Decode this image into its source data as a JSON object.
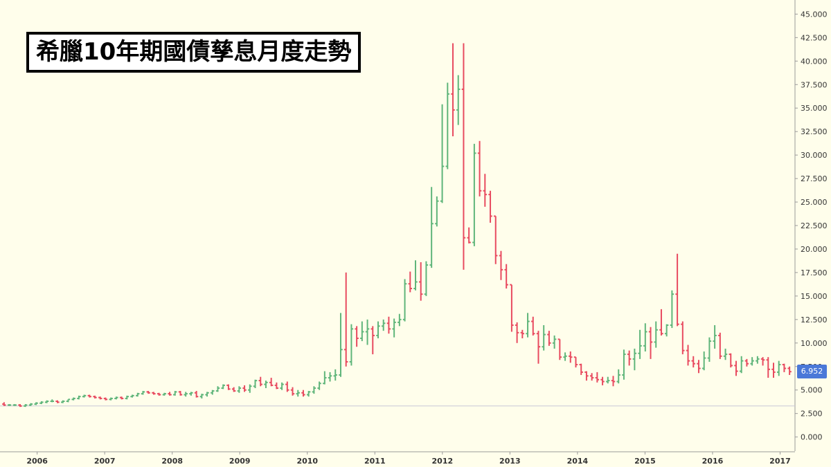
{
  "title": "希臘10年期國債孳息月度走勢",
  "last_price_label": "6.952",
  "colors": {
    "up": "#5fb57a",
    "down": "#e84a5f",
    "background": "#fffeeb",
    "axis": "#999999",
    "price_tag": "#4a78d8",
    "baseline": "#c8c8d8"
  },
  "chart_data": {
    "type": "ohlc",
    "title": "希臘10年期國債孳息月度走勢",
    "xlabel": "",
    "ylabel": "",
    "ylim": [
      -1.5,
      46.5
    ],
    "y_ticks": [
      "0.000",
      "2.500",
      "5.000",
      "7.500",
      "10.000",
      "12.500",
      "15.000",
      "17.500",
      "20.000",
      "22.500",
      "25.000",
      "27.500",
      "30.000",
      "32.500",
      "35.000",
      "37.500",
      "40.000",
      "42.500",
      "45.000"
    ],
    "x_tick_labels": [
      "2006",
      "2007",
      "2008",
      "2009",
      "2010",
      "2011",
      "2012",
      "2013",
      "2014",
      "2015",
      "2016",
      "2017"
    ],
    "x_tick_years": [
      2006,
      2007,
      2008,
      2009,
      2010,
      2011,
      2012,
      2013,
      2014,
      2015,
      2016,
      2017
    ],
    "x_start_year": 2005.45,
    "x_end_year": 2017.2,
    "baseline_value": 3.3,
    "last_value": 6.952,
    "bars": [
      [
        3.5,
        3.7,
        3.3,
        3.4
      ],
      [
        3.4,
        3.5,
        3.3,
        3.4
      ],
      [
        3.4,
        3.5,
        3.3,
        3.4
      ],
      [
        3.4,
        3.5,
        3.2,
        3.3
      ],
      [
        3.3,
        3.5,
        3.2,
        3.4
      ],
      [
        3.4,
        3.6,
        3.3,
        3.5
      ],
      [
        3.5,
        3.7,
        3.4,
        3.6
      ],
      [
        3.6,
        3.8,
        3.5,
        3.7
      ],
      [
        3.7,
        3.9,
        3.6,
        3.8
      ],
      [
        3.8,
        4.0,
        3.7,
        3.8
      ],
      [
        3.8,
        3.9,
        3.6,
        3.7
      ],
      [
        3.7,
        3.9,
        3.6,
        3.8
      ],
      [
        3.8,
        4.0,
        3.7,
        4.0
      ],
      [
        4.0,
        4.2,
        3.9,
        4.1
      ],
      [
        4.1,
        4.4,
        4.0,
        4.3
      ],
      [
        4.3,
        4.5,
        4.2,
        4.4
      ],
      [
        4.4,
        4.5,
        4.2,
        4.3
      ],
      [
        4.3,
        4.4,
        4.1,
        4.2
      ],
      [
        4.2,
        4.3,
        4.0,
        4.1
      ],
      [
        4.1,
        4.2,
        3.9,
        4.0
      ],
      [
        4.0,
        4.2,
        3.9,
        4.1
      ],
      [
        4.1,
        4.3,
        4.0,
        4.2
      ],
      [
        4.2,
        4.3,
        4.0,
        4.1
      ],
      [
        4.1,
        4.4,
        4.0,
        4.3
      ],
      [
        4.3,
        4.5,
        4.2,
        4.4
      ],
      [
        4.4,
        4.7,
        4.3,
        4.6
      ],
      [
        4.6,
        4.9,
        4.5,
        4.8
      ],
      [
        4.8,
        4.9,
        4.6,
        4.7
      ],
      [
        4.7,
        4.8,
        4.5,
        4.6
      ],
      [
        4.6,
        4.7,
        4.4,
        4.5
      ],
      [
        4.5,
        4.7,
        4.4,
        4.6
      ],
      [
        4.6,
        4.8,
        4.4,
        4.5
      ],
      [
        4.5,
        4.9,
        4.4,
        4.8
      ],
      [
        4.8,
        4.9,
        4.4,
        4.5
      ],
      [
        4.5,
        4.8,
        4.3,
        4.6
      ],
      [
        4.6,
        4.8,
        4.4,
        4.7
      ],
      [
        4.7,
        4.9,
        4.2,
        4.3
      ],
      [
        4.3,
        4.6,
        4.1,
        4.5
      ],
      [
        4.5,
        4.8,
        4.3,
        4.7
      ],
      [
        4.7,
        5.0,
        4.5,
        4.9
      ],
      [
        4.9,
        5.4,
        4.8,
        5.2
      ],
      [
        5.2,
        5.6,
        5.1,
        5.5
      ],
      [
        5.5,
        5.6,
        5.0,
        5.1
      ],
      [
        5.1,
        5.3,
        4.8,
        4.9
      ],
      [
        4.9,
        5.4,
        4.7,
        5.2
      ],
      [
        5.2,
        5.5,
        4.8,
        5.0
      ],
      [
        5.0,
        5.6,
        4.7,
        5.4
      ],
      [
        5.4,
        6.1,
        5.2,
        6.0
      ],
      [
        6.0,
        6.4,
        5.4,
        5.6
      ],
      [
        5.6,
        6.0,
        5.2,
        5.8
      ],
      [
        5.8,
        6.3,
        5.4,
        5.5
      ],
      [
        5.5,
        5.8,
        5.1,
        5.2
      ],
      [
        5.2,
        5.8,
        5.0,
        5.6
      ],
      [
        5.6,
        5.9,
        4.8,
        5.0
      ],
      [
        5.0,
        5.3,
        4.4,
        4.6
      ],
      [
        4.6,
        5.0,
        4.3,
        4.7
      ],
      [
        4.7,
        5.0,
        4.3,
        4.5
      ],
      [
        4.5,
        4.9,
        4.3,
        4.8
      ],
      [
        4.8,
        5.4,
        4.6,
        5.2
      ],
      [
        5.2,
        5.9,
        5.0,
        5.7
      ],
      [
        5.7,
        7.0,
        5.6,
        6.3
      ],
      [
        6.3,
        6.9,
        5.9,
        6.5
      ],
      [
        6.5,
        7.2,
        6.0,
        6.6
      ],
      [
        6.6,
        13.2,
        6.4,
        9.3
      ],
      [
        9.3,
        17.5,
        7.5,
        8.0
      ],
      [
        8.0,
        12.0,
        7.6,
        11.5
      ],
      [
        11.5,
        11.8,
        9.6,
        10.5
      ],
      [
        10.5,
        12.3,
        10.2,
        11.2
      ],
      [
        11.2,
        12.5,
        9.8,
        11.5
      ],
      [
        11.5,
        11.8,
        8.8,
        10.8
      ],
      [
        10.8,
        12.3,
        10.5,
        11.8
      ],
      [
        11.8,
        12.5,
        11.3,
        12.1
      ],
      [
        12.1,
        12.8,
        11.0,
        11.5
      ],
      [
        11.5,
        12.6,
        10.6,
        12.2
      ],
      [
        12.2,
        13.1,
        11.8,
        12.5
      ],
      [
        12.5,
        16.8,
        12.3,
        16.3
      ],
      [
        16.3,
        17.6,
        15.4,
        15.8
      ],
      [
        15.8,
        18.8,
        15.6,
        16.5
      ],
      [
        16.5,
        18.6,
        14.5,
        15.2
      ],
      [
        15.2,
        18.7,
        15.0,
        18.3
      ],
      [
        18.3,
        26.6,
        18.0,
        22.7
      ],
      [
        22.7,
        25.6,
        22.4,
        25.1
      ],
      [
        25.1,
        35.4,
        24.9,
        28.8
      ],
      [
        28.8,
        37.7,
        28.5,
        36.5
      ],
      [
        36.5,
        41.9,
        32.0,
        34.8
      ],
      [
        34.8,
        38.5,
        33.2,
        37.0
      ],
      [
        37.0,
        41.9,
        17.8,
        21.2
      ],
      [
        21.2,
        22.3,
        20.6,
        20.7
      ],
      [
        20.7,
        31.2,
        20.3,
        30.2
      ],
      [
        30.2,
        31.5,
        25.6,
        26.2
      ],
      [
        26.2,
        28.0,
        24.5,
        25.8
      ],
      [
        25.8,
        26.2,
        22.8,
        23.5
      ],
      [
        23.5,
        23.5,
        18.4,
        19.3
      ],
      [
        19.3,
        19.8,
        16.7,
        17.8
      ],
      [
        17.8,
        18.4,
        15.8,
        16.2
      ],
      [
        16.2,
        16.2,
        11.2,
        11.9
      ],
      [
        11.9,
        12.2,
        10.0,
        11.1
      ],
      [
        11.1,
        11.4,
        10.5,
        11.0
      ],
      [
        11.0,
        13.2,
        10.6,
        12.3
      ],
      [
        12.3,
        12.8,
        10.8,
        11.0
      ],
      [
        11.0,
        11.3,
        7.8,
        9.6
      ],
      [
        9.6,
        11.9,
        9.2,
        10.9
      ],
      [
        10.9,
        11.3,
        9.7,
        10.0
      ],
      [
        10.0,
        10.8,
        9.4,
        10.4
      ],
      [
        10.4,
        10.4,
        8.2,
        8.5
      ],
      [
        8.5,
        9.0,
        8.1,
        8.6
      ],
      [
        8.6,
        9.1,
        7.9,
        8.5
      ],
      [
        8.5,
        8.5,
        7.4,
        7.7
      ],
      [
        7.7,
        7.8,
        6.6,
        6.9
      ],
      [
        6.9,
        7.0,
        6.0,
        6.5
      ],
      [
        6.5,
        6.8,
        6.0,
        6.3
      ],
      [
        6.3,
        6.9,
        5.8,
        6.1
      ],
      [
        6.1,
        6.4,
        5.5,
        5.9
      ],
      [
        5.9,
        6.4,
        5.7,
        6.0
      ],
      [
        6.0,
        6.5,
        5.4,
        5.9
      ],
      [
        5.9,
        7.2,
        5.7,
        6.6
      ],
      [
        6.6,
        9.3,
        6.1,
        8.8
      ],
      [
        8.8,
        9.2,
        7.6,
        8.3
      ],
      [
        8.3,
        9.4,
        7.1,
        8.9
      ],
      [
        8.9,
        11.4,
        8.3,
        9.7
      ],
      [
        9.7,
        12.1,
        9.1,
        11.2
      ],
      [
        11.2,
        11.7,
        8.3,
        10.1
      ],
      [
        10.1,
        12.3,
        9.5,
        11.4
      ],
      [
        11.4,
        13.6,
        10.8,
        11.0
      ],
      [
        11.0,
        12.0,
        10.7,
        11.9
      ],
      [
        11.9,
        15.6,
        11.6,
        15.2
      ],
      [
        15.2,
        19.5,
        11.8,
        12.0
      ],
      [
        12.0,
        12.3,
        8.8,
        9.2
      ],
      [
        9.2,
        9.8,
        7.6,
        8.1
      ],
      [
        8.1,
        8.6,
        7.4,
        7.8
      ],
      [
        7.8,
        8.2,
        6.8,
        7.3
      ],
      [
        7.3,
        9.1,
        7.1,
        8.4
      ],
      [
        8.4,
        10.6,
        8.0,
        10.2
      ],
      [
        10.2,
        11.9,
        9.4,
        10.8
      ],
      [
        10.8,
        11.1,
        8.3,
        8.6
      ],
      [
        8.6,
        9.4,
        8.2,
        8.8
      ],
      [
        8.8,
        8.9,
        7.4,
        7.6
      ],
      [
        7.6,
        8.1,
        6.5,
        7.0
      ],
      [
        7.0,
        8.6,
        6.8,
        8.1
      ],
      [
        8.1,
        8.3,
        7.5,
        7.8
      ],
      [
        7.8,
        8.5,
        7.6,
        8.1
      ],
      [
        8.1,
        8.6,
        7.8,
        8.3
      ],
      [
        8.3,
        8.5,
        7.6,
        8.2
      ],
      [
        8.2,
        8.5,
        6.3,
        7.2
      ],
      [
        7.2,
        7.9,
        6.3,
        6.9
      ],
      [
        6.9,
        8.1,
        6.5,
        7.7
      ],
      [
        7.7,
        7.8,
        6.9,
        7.3
      ],
      [
        7.3,
        7.5,
        6.6,
        6.952
      ]
    ]
  }
}
